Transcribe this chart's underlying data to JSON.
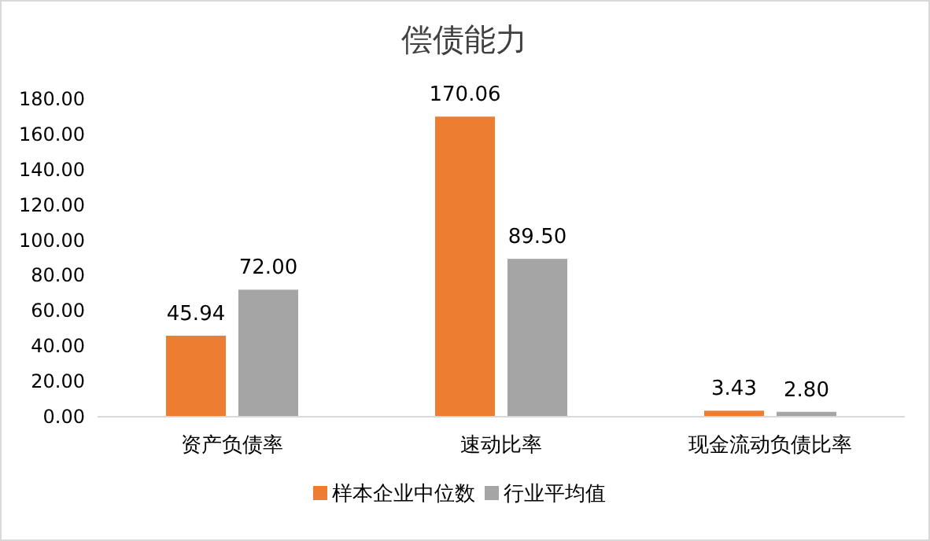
{
  "chart_data": {
    "type": "bar",
    "title": "偿债能力",
    "categories": [
      "资产负债率",
      "速动比率",
      "现金流动负债比率"
    ],
    "series": [
      {
        "name": "样本企业中位数",
        "color": "#ed7d31",
        "values": [
          45.94,
          170.06,
          3.43
        ],
        "value_labels": [
          "45.94",
          "170.06",
          "3.43"
        ]
      },
      {
        "name": "行业平均值",
        "color": "#a5a5a5",
        "values": [
          72.0,
          89.5,
          2.8
        ],
        "value_labels": [
          "72.00",
          "89.50",
          "2.80"
        ]
      }
    ],
    "ylim": [
      0,
      180
    ],
    "yticks": [
      {
        "value": 0,
        "label": "0.00"
      },
      {
        "value": 20,
        "label": "20.00"
      },
      {
        "value": 40,
        "label": "40.00"
      },
      {
        "value": 60,
        "label": "60.00"
      },
      {
        "value": 80,
        "label": "80.00"
      },
      {
        "value": 100,
        "label": "100.00"
      },
      {
        "value": 120,
        "label": "120.00"
      },
      {
        "value": 140,
        "label": "140.00"
      },
      {
        "value": 160,
        "label": "160.00"
      },
      {
        "value": 180,
        "label": "180.00"
      }
    ],
    "grid": false,
    "legend": "bottom"
  }
}
